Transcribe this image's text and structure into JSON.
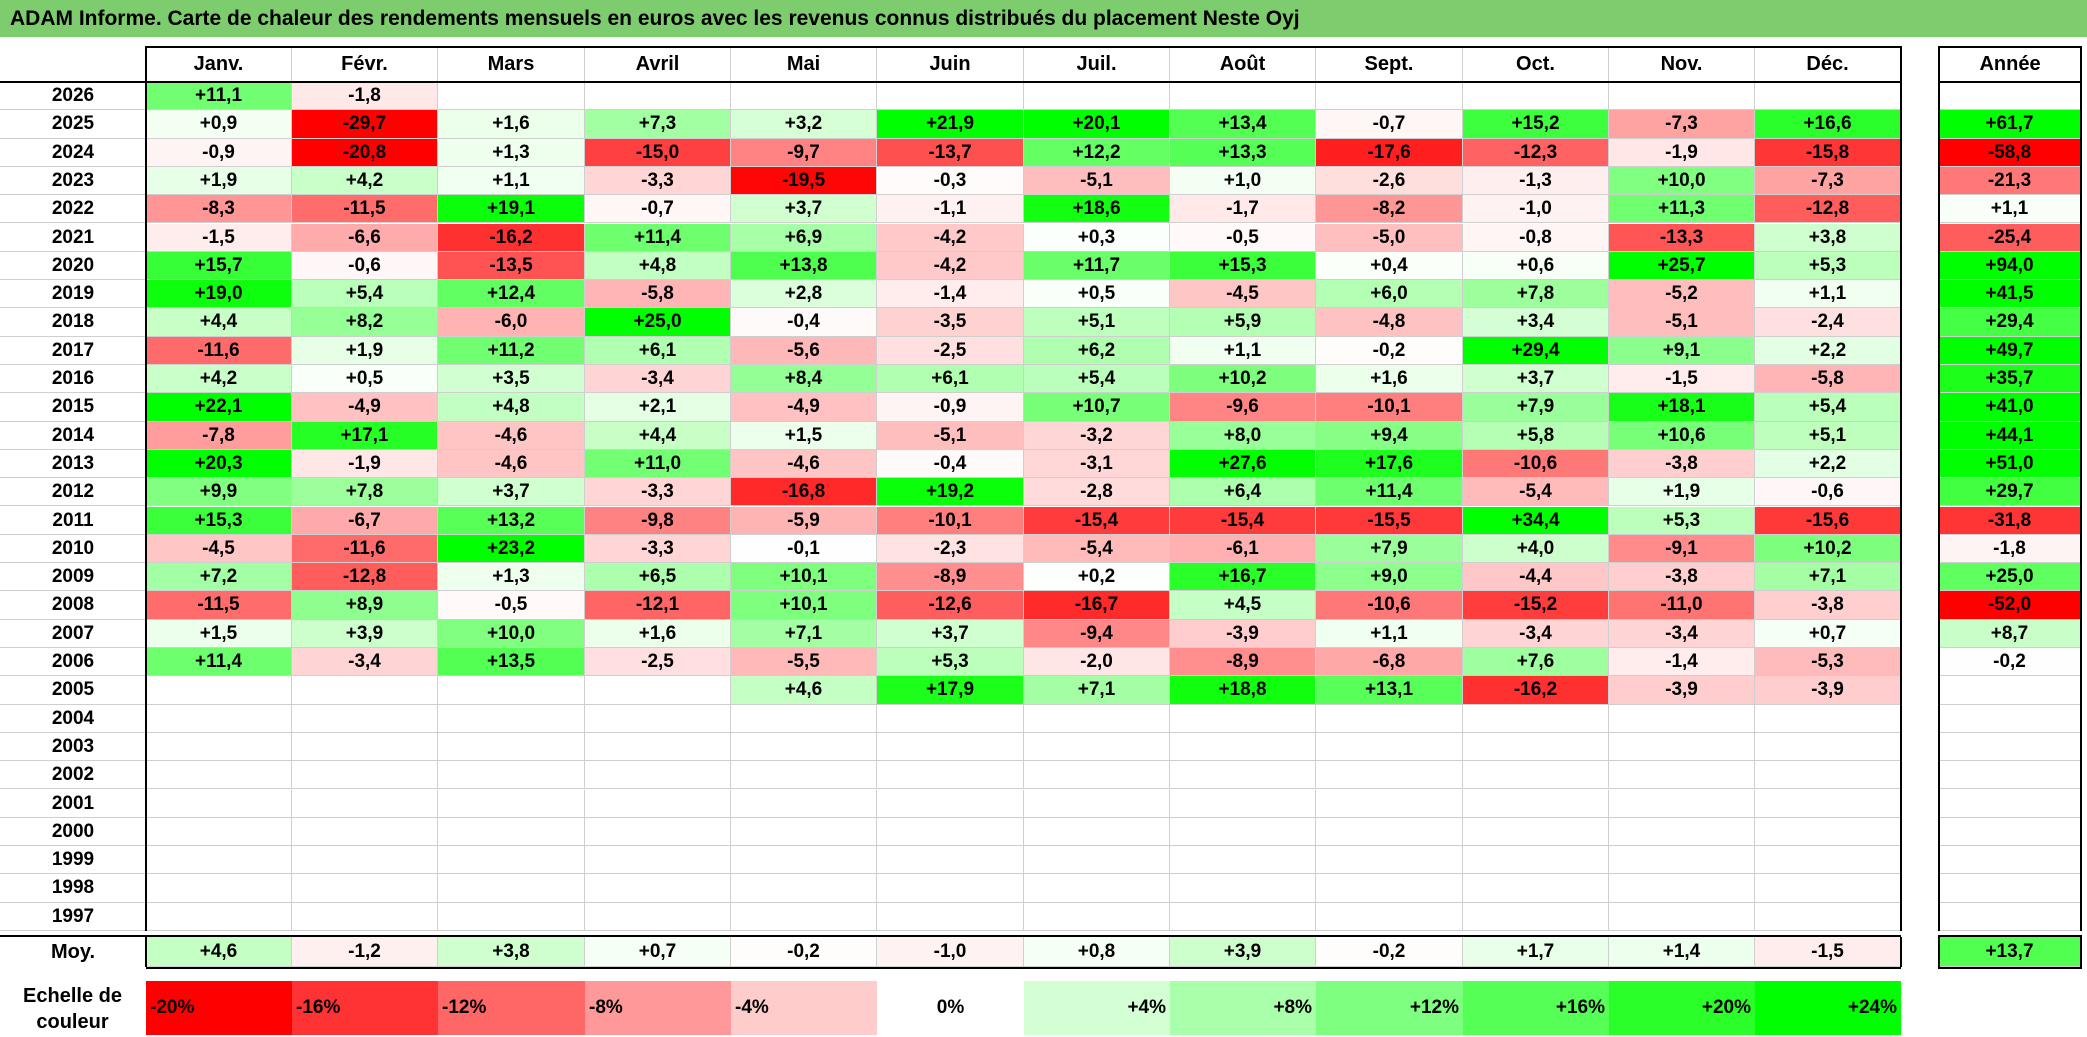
{
  "title": "ADAM Informe. Carte de chaleur des rendements mensuels en euros avec les revenus connus distribués du placement Neste Oyj",
  "chart_data": {
    "type": "heatmap",
    "title": "ADAM Informe. Carte de chaleur des rendements mensuels en euros avec les revenus connus distribués du placement Neste Oyj",
    "columns": [
      "Janv.",
      "Févr.",
      "Mars",
      "Avril",
      "Mai",
      "Juin",
      "Juil.",
      "Août",
      "Sept.",
      "Oct.",
      "Nov.",
      "Déc."
    ],
    "year_column": "Année",
    "rows": [
      {
        "year": "2026",
        "values": [
          "+11,1",
          "-1,8",
          "",
          "",
          "",
          "",
          "",
          "",
          "",
          "",
          "",
          ""
        ],
        "annual": ""
      },
      {
        "year": "2025",
        "values": [
          "+0,9",
          "-29,7",
          "+1,6",
          "+7,3",
          "+3,2",
          "+21,9",
          "+20,1",
          "+13,4",
          "-0,7",
          "+15,2",
          "-7,3",
          "+16,6"
        ],
        "annual": "+61,7"
      },
      {
        "year": "2024",
        "values": [
          "-0,9",
          "-20,8",
          "+1,3",
          "-15,0",
          "-9,7",
          "-13,7",
          "+12,2",
          "+13,3",
          "-17,6",
          "-12,3",
          "-1,9",
          "-15,8"
        ],
        "annual": "-58,8"
      },
      {
        "year": "2023",
        "values": [
          "+1,9",
          "+4,2",
          "+1,1",
          "-3,3",
          "-19,5",
          "-0,3",
          "-5,1",
          "+1,0",
          "-2,6",
          "-1,3",
          "+10,0",
          "-7,3"
        ],
        "annual": "-21,3"
      },
      {
        "year": "2022",
        "values": [
          "-8,3",
          "-11,5",
          "+19,1",
          "-0,7",
          "+3,7",
          "-1,1",
          "+18,6",
          "-1,7",
          "-8,2",
          "-1,0",
          "+11,3",
          "-12,8"
        ],
        "annual": "+1,1"
      },
      {
        "year": "2021",
        "values": [
          "-1,5",
          "-6,6",
          "-16,2",
          "+11,4",
          "+6,9",
          "-4,2",
          "+0,3",
          "-0,5",
          "-5,0",
          "-0,8",
          "-13,3",
          "+3,8"
        ],
        "annual": "-25,4"
      },
      {
        "year": "2020",
        "values": [
          "+15,7",
          "-0,6",
          "-13,5",
          "+4,8",
          "+13,8",
          "-4,2",
          "+11,7",
          "+15,3",
          "+0,4",
          "+0,6",
          "+25,7",
          "+5,3"
        ],
        "annual": "+94,0"
      },
      {
        "year": "2019",
        "values": [
          "+19,0",
          "+5,4",
          "+12,4",
          "-5,8",
          "+2,8",
          "-1,4",
          "+0,5",
          "-4,5",
          "+6,0",
          "+7,8",
          "-5,2",
          "+1,1"
        ],
        "annual": "+41,5"
      },
      {
        "year": "2018",
        "values": [
          "+4,4",
          "+8,2",
          "-6,0",
          "+25,0",
          "-0,4",
          "-3,5",
          "+5,1",
          "+5,9",
          "-4,8",
          "+3,4",
          "-5,1",
          "-2,4"
        ],
        "annual": "+29,4"
      },
      {
        "year": "2017",
        "values": [
          "-11,6",
          "+1,9",
          "+11,2",
          "+6,1",
          "-5,6",
          "-2,5",
          "+6,2",
          "+1,1",
          "-0,2",
          "+29,4",
          "+9,1",
          "+2,2"
        ],
        "annual": "+49,7"
      },
      {
        "year": "2016",
        "values": [
          "+4,2",
          "+0,5",
          "+3,5",
          "-3,4",
          "+8,4",
          "+6,1",
          "+5,4",
          "+10,2",
          "+1,6",
          "+3,7",
          "-1,5",
          "-5,8"
        ],
        "annual": "+35,7"
      },
      {
        "year": "2015",
        "values": [
          "+22,1",
          "-4,9",
          "+4,8",
          "+2,1",
          "-4,9",
          "-0,9",
          "+10,7",
          "-9,6",
          "-10,1",
          "+7,9",
          "+18,1",
          "+5,4"
        ],
        "annual": "+41,0"
      },
      {
        "year": "2014",
        "values": [
          "-7,8",
          "+17,1",
          "-4,6",
          "+4,4",
          "+1,5",
          "-5,1",
          "-3,2",
          "+8,0",
          "+9,4",
          "+5,8",
          "+10,6",
          "+5,1"
        ],
        "annual": "+44,1"
      },
      {
        "year": "2013",
        "values": [
          "+20,3",
          "-1,9",
          "-4,6",
          "+11,0",
          "-4,6",
          "-0,4",
          "-3,1",
          "+27,6",
          "+17,6",
          "-10,6",
          "-3,8",
          "+2,2"
        ],
        "annual": "+51,0"
      },
      {
        "year": "2012",
        "values": [
          "+9,9",
          "+7,8",
          "+3,7",
          "-3,3",
          "-16,8",
          "+19,2",
          "-2,8",
          "+6,4",
          "+11,4",
          "-5,4",
          "+1,9",
          "-0,6"
        ],
        "annual": "+29,7"
      },
      {
        "year": "2011",
        "values": [
          "+15,3",
          "-6,7",
          "+13,2",
          "-9,8",
          "-5,9",
          "-10,1",
          "-15,4",
          "-15,4",
          "-15,5",
          "+34,4",
          "+5,3",
          "-15,6"
        ],
        "annual": "-31,8"
      },
      {
        "year": "2010",
        "values": [
          "-4,5",
          "-11,6",
          "+23,2",
          "-3,3",
          "-0,1",
          "-2,3",
          "-5,4",
          "-6,1",
          "+7,9",
          "+4,0",
          "-9,1",
          "+10,2"
        ],
        "annual": "-1,8"
      },
      {
        "year": "2009",
        "values": [
          "+7,2",
          "-12,8",
          "+1,3",
          "+6,5",
          "+10,1",
          "-8,9",
          "+0,2",
          "+16,7",
          "+9,0",
          "-4,4",
          "-3,8",
          "+7,1"
        ],
        "annual": "+25,0"
      },
      {
        "year": "2008",
        "values": [
          "-11,5",
          "+8,9",
          "-0,5",
          "-12,1",
          "+10,1",
          "-12,6",
          "-16,7",
          "+4,5",
          "-10,6",
          "-15,2",
          "-11,0",
          "-3,8"
        ],
        "annual": "-52,0"
      },
      {
        "year": "2007",
        "values": [
          "+1,5",
          "+3,9",
          "+10,0",
          "+1,6",
          "+7,1",
          "+3,7",
          "-9,4",
          "-3,9",
          "+1,1",
          "-3,4",
          "-3,4",
          "+0,7"
        ],
        "annual": "+8,7"
      },
      {
        "year": "2006",
        "values": [
          "+11,4",
          "-3,4",
          "+13,5",
          "-2,5",
          "-5,5",
          "+5,3",
          "-2,0",
          "-8,9",
          "-6,8",
          "+7,6",
          "-1,4",
          "-5,3"
        ],
        "annual": "-0,2"
      },
      {
        "year": "2005",
        "values": [
          "",
          "",
          "",
          "",
          "+4,6",
          "+17,9",
          "+7,1",
          "+18,8",
          "+13,1",
          "-16,2",
          "-3,9",
          "-3,9"
        ],
        "annual": ""
      },
      {
        "year": "2004",
        "values": [
          "",
          "",
          "",
          "",
          "",
          "",
          "",
          "",
          "",
          "",
          "",
          ""
        ],
        "annual": ""
      },
      {
        "year": "2003",
        "values": [
          "",
          "",
          "",
          "",
          "",
          "",
          "",
          "",
          "",
          "",
          "",
          ""
        ],
        "annual": ""
      },
      {
        "year": "2002",
        "values": [
          "",
          "",
          "",
          "",
          "",
          "",
          "",
          "",
          "",
          "",
          "",
          ""
        ],
        "annual": ""
      },
      {
        "year": "2001",
        "values": [
          "",
          "",
          "",
          "",
          "",
          "",
          "",
          "",
          "",
          "",
          "",
          ""
        ],
        "annual": ""
      },
      {
        "year": "2000",
        "values": [
          "",
          "",
          "",
          "",
          "",
          "",
          "",
          "",
          "",
          "",
          "",
          ""
        ],
        "annual": ""
      },
      {
        "year": "1999",
        "values": [
          "",
          "",
          "",
          "",
          "",
          "",
          "",
          "",
          "",
          "",
          "",
          ""
        ],
        "annual": ""
      },
      {
        "year": "1998",
        "values": [
          "",
          "",
          "",
          "",
          "",
          "",
          "",
          "",
          "",
          "",
          "",
          ""
        ],
        "annual": ""
      },
      {
        "year": "1997",
        "values": [
          "",
          "",
          "",
          "",
          "",
          "",
          "",
          "",
          "",
          "",
          "",
          ""
        ],
        "annual": ""
      }
    ],
    "average": {
      "label": "Moy.",
      "values": [
        "+4,6",
        "-1,2",
        "+3,8",
        "+0,7",
        "-0,2",
        "-1,0",
        "+0,8",
        "+3,9",
        "-0,2",
        "+1,7",
        "+1,4",
        "-1,5"
      ],
      "annual": "+13,7"
    },
    "color_scale": {
      "label": "Echelle de couleur",
      "steps": [
        "-20%",
        "-16%",
        "-12%",
        "-8%",
        "-4%",
        "0%",
        "+4%",
        "+8%",
        "+12%",
        "+16%",
        "+20%",
        "+24%"
      ],
      "colors": [
        "#ff0000",
        "#ff3333",
        "#ff6666",
        "#ff9999",
        "#ffcccc",
        "#ffffff",
        "#d4ffd4",
        "#aaffaa",
        "#7fff7f",
        "#55ff55",
        "#2aff2a",
        "#00ff00"
      ]
    }
  }
}
